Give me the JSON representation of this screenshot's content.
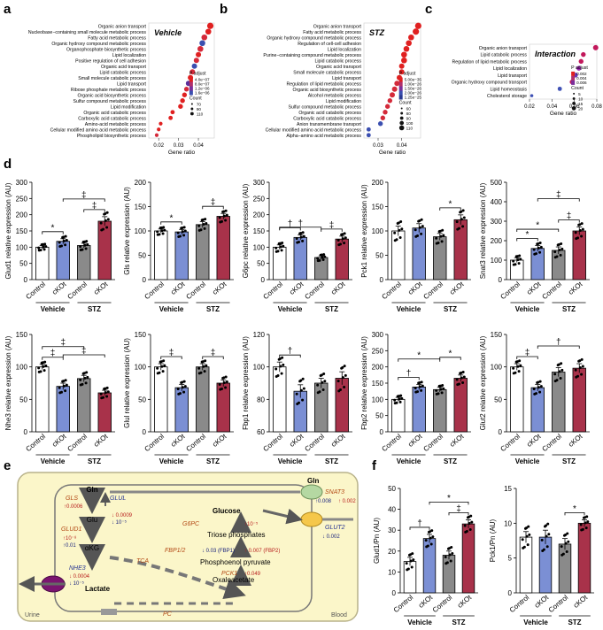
{
  "letters": {
    "a": "a",
    "b": "b",
    "c": "c",
    "d": "d",
    "e": "e",
    "f": "f"
  },
  "panel_a": {
    "title": "Vehicle",
    "xlabel": "Gene ratio",
    "xticks": [
      "0.02",
      "0.03",
      "0.04"
    ],
    "xrange": [
      0.015,
      0.048
    ],
    "legend_padj_title": "P adjust",
    "legend_padj": [
      "4.0e−07",
      "8.0e−07",
      "1.2e−06",
      "1.6e−06"
    ],
    "legend_count_title": "Count",
    "legend_count": [
      "70",
      "90",
      "110"
    ],
    "terms": [
      {
        "label": "Organic anion transport",
        "x": 0.046,
        "c": "#e02020",
        "s": 5
      },
      {
        "label": "Nucleobase−containing small molecule metabolic process",
        "x": 0.045,
        "c": "#e02020",
        "s": 4.5
      },
      {
        "label": "Fatty acid metabolic process",
        "x": 0.043,
        "c": "#d42a3a",
        "s": 4.5
      },
      {
        "label": "Organic hydroxy compound metabolic process",
        "x": 0.042,
        "c": "#3b4fb0",
        "s": 4.5
      },
      {
        "label": "Organophosphate biosynthetic process",
        "x": 0.041,
        "c": "#d42a3a",
        "s": 4.5
      },
      {
        "label": "Lipid localization",
        "x": 0.04,
        "c": "#e02020",
        "s": 4
      },
      {
        "label": "Positive regulation of cell adhesion",
        "x": 0.039,
        "c": "#d42a3a",
        "s": 4
      },
      {
        "label": "Organic acid transport",
        "x": 0.038,
        "c": "#3b4fb0",
        "s": 4
      },
      {
        "label": "Lipid catabolic process",
        "x": 0.037,
        "c": "#d42a3a",
        "s": 4
      },
      {
        "label": "Small molecule catabolic process",
        "x": 0.036,
        "c": "#e02020",
        "s": 4
      },
      {
        "label": "Lipid transport",
        "x": 0.035,
        "c": "#5b2f9a",
        "s": 4
      },
      {
        "label": "Ribose phosphate metabolic process",
        "x": 0.034,
        "c": "#d42a3a",
        "s": 3.5
      },
      {
        "label": "Organic acid biosynthetic process",
        "x": 0.033,
        "c": "#e02020",
        "s": 3.5
      },
      {
        "label": "Sulfur compound metabolic process",
        "x": 0.032,
        "c": "#e02020",
        "s": 3.5
      },
      {
        "label": "Lipid modification",
        "x": 0.031,
        "c": "#e02020",
        "s": 3.5
      },
      {
        "label": "Organic acid catabolic process",
        "x": 0.027,
        "c": "#e02020",
        "s": 3
      },
      {
        "label": "Carboxylic acid catabolic process",
        "x": 0.026,
        "c": "#e02020",
        "s": 3
      },
      {
        "label": "Amino-acid metabolic process",
        "x": 0.021,
        "c": "#e02020",
        "s": 2.5
      },
      {
        "label": "Cellular modified amino acid metabolic process",
        "x": 0.02,
        "c": "#e02020",
        "s": 2.5
      },
      {
        "label": "Phospholipid biosynthetic process",
        "x": 0.019,
        "c": "#d42a3a",
        "s": 2.5
      }
    ]
  },
  "panel_b": {
    "title": "STZ",
    "xlabel": "Gene ratio",
    "xticks": [
      "0.03",
      "0.04"
    ],
    "xrange": [
      0.024,
      0.048
    ],
    "legend_padj_title": "P adjust",
    "legend_padj": [
      "5.00e−35",
      "1.00e−26",
      "1.50e−26",
      "2.00e−26",
      "1.25e−25"
    ],
    "legend_count_title": "Count",
    "legend_count": [
      "60",
      "80",
      "90",
      "100",
      "110"
    ],
    "terms": [
      {
        "label": "Organic anion transport",
        "x": 0.047,
        "c": "#e02020",
        "s": 5
      },
      {
        "label": "Fatty acid metabolic process",
        "x": 0.046,
        "c": "#e02020",
        "s": 5
      },
      {
        "label": "Organic hydroxy compound metabolic process",
        "x": 0.044,
        "c": "#e02020",
        "s": 4.5
      },
      {
        "label": "Regulation of cell-cell adhesion",
        "x": 0.043,
        "c": "#e02020",
        "s": 4.5
      },
      {
        "label": "Lipid localization",
        "x": 0.042,
        "c": "#e02020",
        "s": 4.5
      },
      {
        "label": "Purine−containing compound metabolic process",
        "x": 0.041,
        "c": "#e02020",
        "s": 4.5
      },
      {
        "label": "Lipid catabolic process",
        "x": 0.041,
        "c": "#e02020",
        "s": 4.5
      },
      {
        "label": "Organic acid transport",
        "x": 0.04,
        "c": "#e02020",
        "s": 4
      },
      {
        "label": "Small molecule catabolic process",
        "x": 0.04,
        "c": "#e02020",
        "s": 4
      },
      {
        "label": "Lipid transport",
        "x": 0.039,
        "c": "#e02020",
        "s": 4
      },
      {
        "label": "Regulation of lipid metabolic process",
        "x": 0.038,
        "c": "#d42a3a",
        "s": 4
      },
      {
        "label": "Organic acid biosynthetic process",
        "x": 0.037,
        "c": "#d42a3a",
        "s": 4
      },
      {
        "label": "Alcohol metabolic process",
        "x": 0.036,
        "c": "#d42a3a",
        "s": 4
      },
      {
        "label": "Lipid modification",
        "x": 0.035,
        "c": "#d42a3a",
        "s": 3.5
      },
      {
        "label": "Sulfur compound metabolic process",
        "x": 0.034,
        "c": "#d42a3a",
        "s": 3.5
      },
      {
        "label": "Organic acid catabolic process",
        "x": 0.033,
        "c": "#d42a3a",
        "s": 3.5
      },
      {
        "label": "Carboxylic acid catabolic process",
        "x": 0.032,
        "c": "#d42a3a",
        "s": 3.5
      },
      {
        "label": "Anion transmembrane transport",
        "x": 0.031,
        "c": "#3b4fb0",
        "s": 3.5
      },
      {
        "label": "Cellular modified amino acid metabolic process",
        "x": 0.026,
        "c": "#3b4fb0",
        "s": 3
      },
      {
        "label": "Alpha−amino acid metabolic process",
        "x": 0.026,
        "c": "#3b4fb0",
        "s": 3
      }
    ]
  },
  "panel_c": {
    "title": "Interaction",
    "xlabel": "Gene ratio",
    "xticks": [
      "0.02",
      "0.04",
      "0.06",
      "0.08"
    ],
    "xrange": [
      0.02,
      0.08
    ],
    "legend_padj_title": "P adjust",
    "legend_padj": [
      "0.002",
      "0.004",
      "0.006"
    ],
    "legend_count_title": "Count",
    "legend_count": [
      "5",
      "10",
      "15",
      "20"
    ],
    "terms": [
      {
        "label": "Organic anion transport",
        "x": 0.079,
        "c": "#c2185b",
        "s": 4
      },
      {
        "label": "Lipid catabolic process",
        "x": 0.068,
        "c": "#c2185b",
        "s": 3.5
      },
      {
        "label": "Regulation of lipid metabolic process",
        "x": 0.066,
        "c": "#c2185b",
        "s": 3.5
      },
      {
        "label": "Lipid localization",
        "x": 0.064,
        "c": "#9c27b0",
        "s": 3.5
      },
      {
        "label": "Lipid transport",
        "x": 0.061,
        "c": "#673ab7",
        "s": 3.5
      },
      {
        "label": "Organic hydroxy compound transport",
        "x": 0.058,
        "c": "#c2185b",
        "s": 3.5
      },
      {
        "label": "Lipid homeostasis",
        "x": 0.047,
        "c": "#3f51b5",
        "s": 3
      },
      {
        "label": "Cholesterol storage",
        "x": 0.022,
        "c": "#3f51b5",
        "s": 2
      }
    ]
  },
  "group_labels": {
    "control": "Control",
    "cko": "cKOt",
    "vehicle": "Vehicle",
    "stz": "STZ"
  },
  "bar_colors": {
    "control_vehicle": "#ffffff",
    "cko_vehicle": "#7b8fd4",
    "control_stz": "#8a8a8a",
    "cko_stz": "#a8324a"
  },
  "panel_d": [
    {
      "ylabel": "Glud1 relative expression (AU)",
      "ymin": 0,
      "ymax": 300,
      "yticks": [
        0,
        50,
        100,
        150,
        200,
        250,
        300
      ],
      "values": [
        100,
        118,
        105,
        180
      ],
      "errors": [
        5,
        8,
        7,
        14
      ],
      "sig": [
        {
          "a": 0,
          "b": 1,
          "t": "*",
          "lvl": 0
        },
        {
          "a": 2,
          "b": 3,
          "t": "‡",
          "lvl": 0
        },
        {
          "a": 1,
          "b": 3,
          "t": "‡",
          "lvl": 1
        }
      ]
    },
    {
      "ylabel": "Gls relative expression (AU)",
      "ymin": 0,
      "ymax": 200,
      "yticks": [
        0,
        50,
        100,
        150,
        200
      ],
      "values": [
        100,
        98,
        113,
        130
      ],
      "errors": [
        4,
        5,
        6,
        6
      ],
      "sig": [
        {
          "a": 0,
          "b": 1,
          "t": "*",
          "lvl": 0
        },
        {
          "a": 2,
          "b": 3,
          "t": "‡",
          "lvl": 0
        }
      ]
    },
    {
      "ylabel": "G6pc relative expression (AU)",
      "ymin": 0,
      "ymax": 300,
      "yticks": [
        0,
        50,
        100,
        150,
        200,
        250,
        300
      ],
      "values": [
        100,
        130,
        68,
        125
      ],
      "errors": [
        7,
        8,
        5,
        9
      ],
      "sig": [
        {
          "a": 0,
          "b": 1,
          "t": "†",
          "lvl": 0
        },
        {
          "a": 2,
          "b": 3,
          "t": "‡",
          "lvl": 0
        },
        {
          "a": 0,
          "b": 2,
          "t": "†",
          "lvl": 1
        }
      ]
    },
    {
      "ylabel": "Pck1 relative expression (AU)",
      "ymin": 0,
      "ymax": 200,
      "yticks": [
        0,
        50,
        100,
        150,
        200
      ],
      "values": [
        100,
        106,
        88,
        123
      ],
      "errors": [
        10,
        9,
        7,
        10
      ],
      "sig": [
        {
          "a": 2,
          "b": 3,
          "t": "*",
          "lvl": 0
        }
      ]
    },
    {
      "ylabel": "Snat3 relative expression (AU)",
      "ymin": 0,
      "ymax": 500,
      "yticks": [
        0,
        100,
        200,
        300,
        400,
        500
      ],
      "values": [
        100,
        160,
        150,
        250
      ],
      "errors": [
        12,
        15,
        18,
        20
      ],
      "sig": [
        {
          "a": 0,
          "b": 1,
          "t": "*",
          "lvl": 0
        },
        {
          "a": 2,
          "b": 3,
          "t": "‡",
          "lvl": 0
        },
        {
          "a": 0,
          "b": 2,
          "t": "*",
          "lvl": 1
        },
        {
          "a": 1,
          "b": 3,
          "t": "‡",
          "lvl": 2
        }
      ]
    },
    {
      "ylabel": "Nhe3 relative expression (AU)",
      "ymin": 0,
      "ymax": 150,
      "yticks": [
        0,
        50,
        100,
        150
      ],
      "values": [
        100,
        70,
        82,
        60
      ],
      "errors": [
        4,
        5,
        5,
        4
      ],
      "sig": [
        {
          "a": 0,
          "b": 1,
          "t": "‡",
          "lvl": 0
        },
        {
          "a": 0,
          "b": 2,
          "t": "‡",
          "lvl": 1
        },
        {
          "a": 1,
          "b": 3,
          "t": "‡",
          "lvl": 2
        }
      ]
    },
    {
      "ylabel": "Glul relative expression (AU)",
      "ymin": 0,
      "ymax": 150,
      "yticks": [
        0,
        50,
        100,
        150
      ],
      "values": [
        100,
        68,
        100,
        75
      ],
      "errors": [
        5,
        5,
        5,
        5
      ],
      "sig": [
        {
          "a": 0,
          "b": 1,
          "t": "‡",
          "lvl": 0
        },
        {
          "a": 2,
          "b": 3,
          "t": "‡",
          "lvl": 0
        }
      ]
    },
    {
      "ylabel": "Fbp1 relative expression (AU)",
      "ymin": 60,
      "ymax": 120,
      "yticks": [
        60,
        80,
        100,
        120
      ],
      "values": [
        100,
        85,
        90,
        93
      ],
      "errors": [
        3,
        4,
        3,
        4
      ],
      "sig": [
        {
          "a": 0,
          "b": 1,
          "t": "†",
          "lvl": 0
        }
      ]
    },
    {
      "ylabel": "Fbp2 relative expression (AU)",
      "ymin": 0,
      "ymax": 300,
      "yticks": [
        0,
        50,
        100,
        150,
        200,
        250,
        300
      ],
      "values": [
        100,
        138,
        130,
        165
      ],
      "errors": [
        6,
        8,
        7,
        10
      ],
      "sig": [
        {
          "a": 0,
          "b": 1,
          "t": "†",
          "lvl": 0
        },
        {
          "a": 2,
          "b": 3,
          "t": "*",
          "lvl": 1
        },
        {
          "a": 0,
          "b": 2,
          "t": "*",
          "lvl": 2
        }
      ]
    },
    {
      "ylabel": "Glut2 relative expression (AU)",
      "ymin": 0,
      "ymax": 150,
      "yticks": [
        0,
        50,
        100,
        150
      ],
      "values": [
        100,
        68,
        92,
        98
      ],
      "errors": [
        5,
        5,
        7,
        7
      ],
      "sig": [
        {
          "a": 0,
          "b": 1,
          "t": "‡",
          "lvl": 0
        },
        {
          "a": 1,
          "b": 3,
          "t": "†",
          "lvl": 1
        }
      ]
    }
  ],
  "panel_f": [
    {
      "ylabel": "Glud1/Pn (AU)",
      "ymin": 0,
      "ymax": 50,
      "yticks": [
        0,
        10,
        20,
        30,
        40,
        50
      ],
      "values": [
        15,
        26,
        18,
        33
      ],
      "errors": [
        2,
        2,
        2,
        2
      ],
      "sig": [
        {
          "a": 0,
          "b": 1,
          "t": "†",
          "lvl": 0
        },
        {
          "a": 2,
          "b": 3,
          "t": "‡",
          "lvl": 0
        },
        {
          "a": 1,
          "b": 3,
          "t": "*",
          "lvl": 1
        }
      ]
    },
    {
      "ylabel": "Pck1/Pn (AU)",
      "ymin": 0,
      "ymax": 15,
      "yticks": [
        0,
        5,
        10,
        15
      ],
      "values": [
        8,
        8,
        7,
        10
      ],
      "errors": [
        0.8,
        1.0,
        0.8,
        0.5
      ],
      "sig": [
        {
          "a": 2,
          "b": 3,
          "t": "*",
          "lvl": 0
        }
      ]
    }
  ],
  "panel_e": {
    "urine": "Urine",
    "blood": "Blood",
    "gln": "Gln",
    "gln_blood": "Gln",
    "glu": "Glu",
    "akg": "αKG",
    "lactate": "Lactate",
    "glucose": "Glucose",
    "triose": "Triose phosphates",
    "pep": "Phosphoenol pyruvate",
    "oaa": "Oxaloacetate",
    "gls": "GLS",
    "gls_p": "↑0.0006",
    "glul": "GLUL",
    "glul_p1": "↓ 0.0009",
    "glul_p2": "↓ 10⁻⁵",
    "glud1": "GLUD1",
    "glud1_p1": "↑10⁻⁸",
    "glud1_p2": "↑0.01",
    "nhe3": "NHE3",
    "nhe3_p1": "↓ 0.0004",
    "nhe3_p2": "↓ 10⁻⁵",
    "tca": "TCA",
    "pc": "PC",
    "g6pc": "G6PC",
    "g6pc_p": "↑10⁻⁵",
    "fbp": "FBP1/2",
    "fbp_p1": "↓ 0.03 (FBP1)",
    "fbp_p2": "↑ 0.007 (FBP2)",
    "pck1": "PCK1",
    "pck1_p": "↑0.049",
    "snat3": "SNAT3",
    "snat3_p1": "↑0.008",
    "snat3_p2": "↑ 0.002",
    "glut2": "GLUT2",
    "glut2_p": "↓ 0.002"
  }
}
